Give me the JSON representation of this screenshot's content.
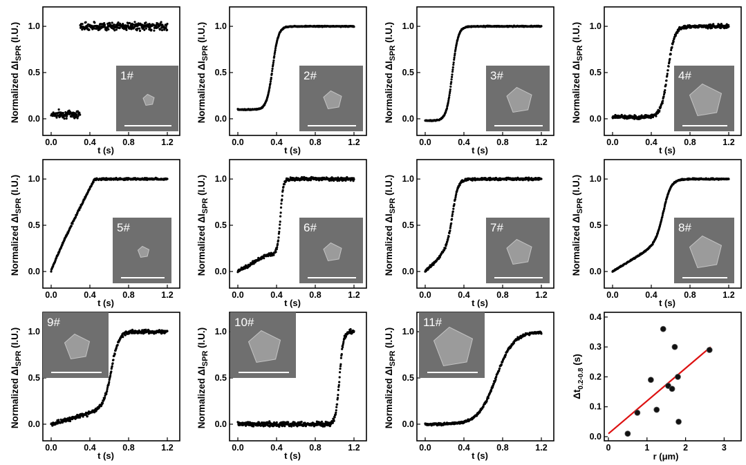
{
  "panels": [
    {
      "label": "1#",
      "type": "step",
      "t0": 0.3,
      "w": 0.01,
      "base": 0.05,
      "noise": 0.06,
      "span": [
        0,
        1.2
      ]
    },
    {
      "label": "2#",
      "type": "two",
      "t0": 0.36,
      "w": 0.03,
      "base": 0.0,
      "noise": 0.008,
      "span": [
        0,
        1.2
      ],
      "pre": [
        0.1,
        0.25,
        0.1,
        0.12
      ]
    },
    {
      "label": "3#",
      "type": "sig",
      "t0": 0.28,
      "w": 0.03,
      "base": -0.02,
      "noise": 0.008,
      "span": [
        0,
        1.2
      ]
    },
    {
      "label": "4#",
      "type": "sig",
      "t0": 0.57,
      "w": 0.035,
      "base": 0.02,
      "noise": 0.03,
      "span": [
        0,
        1.2
      ]
    },
    {
      "label": "5#",
      "type": "lin",
      "t0": 0.45,
      "base": 0.0,
      "noise": 0.015,
      "span": [
        0,
        1.2
      ]
    },
    {
      "label": "6#",
      "type": "two",
      "t0": 0.44,
      "w": 0.015,
      "base": 0.15,
      "noise": 0.025,
      "span": [
        0,
        1.2
      ],
      "pre": [
        0.0,
        0.3,
        0.18,
        0.12
      ]
    },
    {
      "label": "7#",
      "type": "two",
      "t0": 0.28,
      "w": 0.03,
      "base": 0.05,
      "noise": 0.02,
      "span": [
        0,
        1.2
      ],
      "pre": [
        0.0,
        0.2,
        0.2,
        0.1
      ]
    },
    {
      "label": "8#",
      "type": "two",
      "t0": 0.53,
      "w": 0.04,
      "base": 0.0,
      "noise": 0.01,
      "span": [
        0,
        1.2
      ],
      "pre": [
        0.0,
        0.55,
        0.35,
        0.4
      ]
    },
    {
      "label": "9#",
      "type": "two",
      "t0": 0.62,
      "w": 0.04,
      "base": 0.05,
      "noise": 0.03,
      "span": [
        0,
        1.2
      ],
      "pre": [
        0.0,
        0.5,
        0.15,
        0.12
      ]
    },
    {
      "label": "10#",
      "type": "sig",
      "t0": 1.05,
      "w": 0.02,
      "base": 0.0,
      "noise": 0.035,
      "span": [
        0,
        1.2
      ]
    },
    {
      "label": "11#",
      "type": "sig",
      "t0": 0.73,
      "w": 0.09,
      "base": 0.0,
      "noise": 0.02,
      "span": [
        0,
        1.2
      ]
    }
  ],
  "axes": {
    "xlabel": "t (s)",
    "ylabel_prefix": "Normalized ΔI",
    "ylabel_sub": "SPR",
    "ylabel_suffix": " (I.U.)",
    "xticks": [
      "0.0",
      "0.4",
      "0.8",
      "1.2"
    ],
    "yticks": [
      "0.0",
      "0.5",
      "1.0"
    ]
  },
  "chart_data": {
    "type": "scatter",
    "title": "",
    "xlabel": "r (μm)",
    "ylabel_main": "Δt",
    "ylabel_sub": "0.2-0.8",
    "ylabel_suffix": " (s)",
    "xlim": [
      0,
      3
    ],
    "ylim": [
      0,
      0.4
    ],
    "xticks": [
      "0",
      "1",
      "2",
      "3"
    ],
    "yticks": [
      "0.0",
      "0.1",
      "0.2",
      "0.3",
      "0.4"
    ],
    "points": [
      {
        "x": 0.5,
        "y": 0.01
      },
      {
        "x": 0.75,
        "y": 0.08
      },
      {
        "x": 1.1,
        "y": 0.19
      },
      {
        "x": 1.25,
        "y": 0.09
      },
      {
        "x": 1.42,
        "y": 0.36
      },
      {
        "x": 1.55,
        "y": 0.17
      },
      {
        "x": 1.65,
        "y": 0.16
      },
      {
        "x": 1.72,
        "y": 0.3
      },
      {
        "x": 1.8,
        "y": 0.2
      },
      {
        "x": 1.82,
        "y": 0.05
      },
      {
        "x": 2.62,
        "y": 0.29
      }
    ],
    "fit": {
      "x": [
        0.0,
        2.65
      ],
      "y": [
        0.01,
        0.3
      ],
      "color": "#dd1111"
    }
  },
  "colors": {
    "marker": "#000000",
    "fit": "#dd1111",
    "inset_bg": "#6f6f6f"
  }
}
